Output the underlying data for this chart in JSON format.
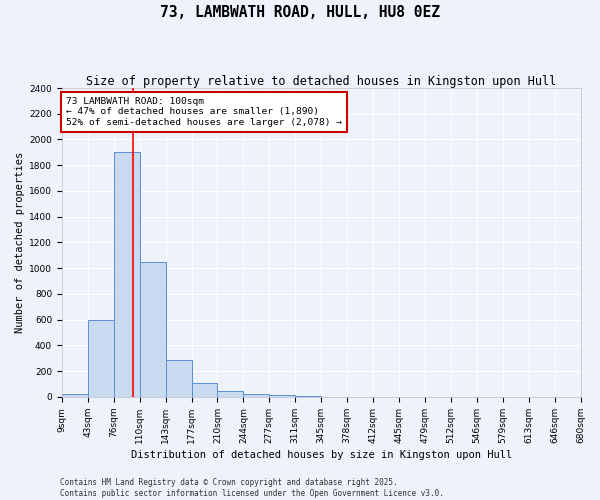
{
  "title": "73, LAMBWATH ROAD, HULL, HU8 0EZ",
  "subtitle": "Size of property relative to detached houses in Kingston upon Hull",
  "xlabel": "Distribution of detached houses by size in Kingston upon Hull",
  "ylabel": "Number of detached properties",
  "bin_labels": [
    "9sqm",
    "43sqm",
    "76sqm",
    "110sqm",
    "143sqm",
    "177sqm",
    "210sqm",
    "244sqm",
    "277sqm",
    "311sqm",
    "345sqm",
    "378sqm",
    "412sqm",
    "445sqm",
    "479sqm",
    "512sqm",
    "546sqm",
    "579sqm",
    "613sqm",
    "646sqm",
    "680sqm"
  ],
  "bar_heights": [
    20,
    600,
    1900,
    1050,
    290,
    110,
    45,
    20,
    15,
    5,
    0,
    0,
    0,
    0,
    0,
    0,
    0,
    0,
    0,
    0
  ],
  "bar_color": "#c9d9f0",
  "bar_edge_color": "#5b8fd4",
  "bg_color": "#eef2fb",
  "grid_color": "#ffffff",
  "red_line_x": 2.75,
  "annotation_line1": "73 LAMBWATH ROAD: 100sqm",
  "annotation_line2": "← 47% of detached houses are smaller (1,890)",
  "annotation_line3": "52% of semi-detached houses are larger (2,078) →",
  "annotation_box_color": "#ffffff",
  "annotation_box_edge_color": "#cc0000",
  "ylim_max": 2400,
  "ytick_step": 200,
  "copyright_text": "Contains HM Land Registry data © Crown copyright and database right 2025.\nContains public sector information licensed under the Open Government Licence v3.0.",
  "title_fontsize": 10.5,
  "subtitle_fontsize": 8.5,
  "ylabel_fontsize": 7.5,
  "xlabel_fontsize": 7.5,
  "tick_fontsize": 6.5,
  "annotation_fontsize": 6.8,
  "copyright_fontsize": 5.5
}
